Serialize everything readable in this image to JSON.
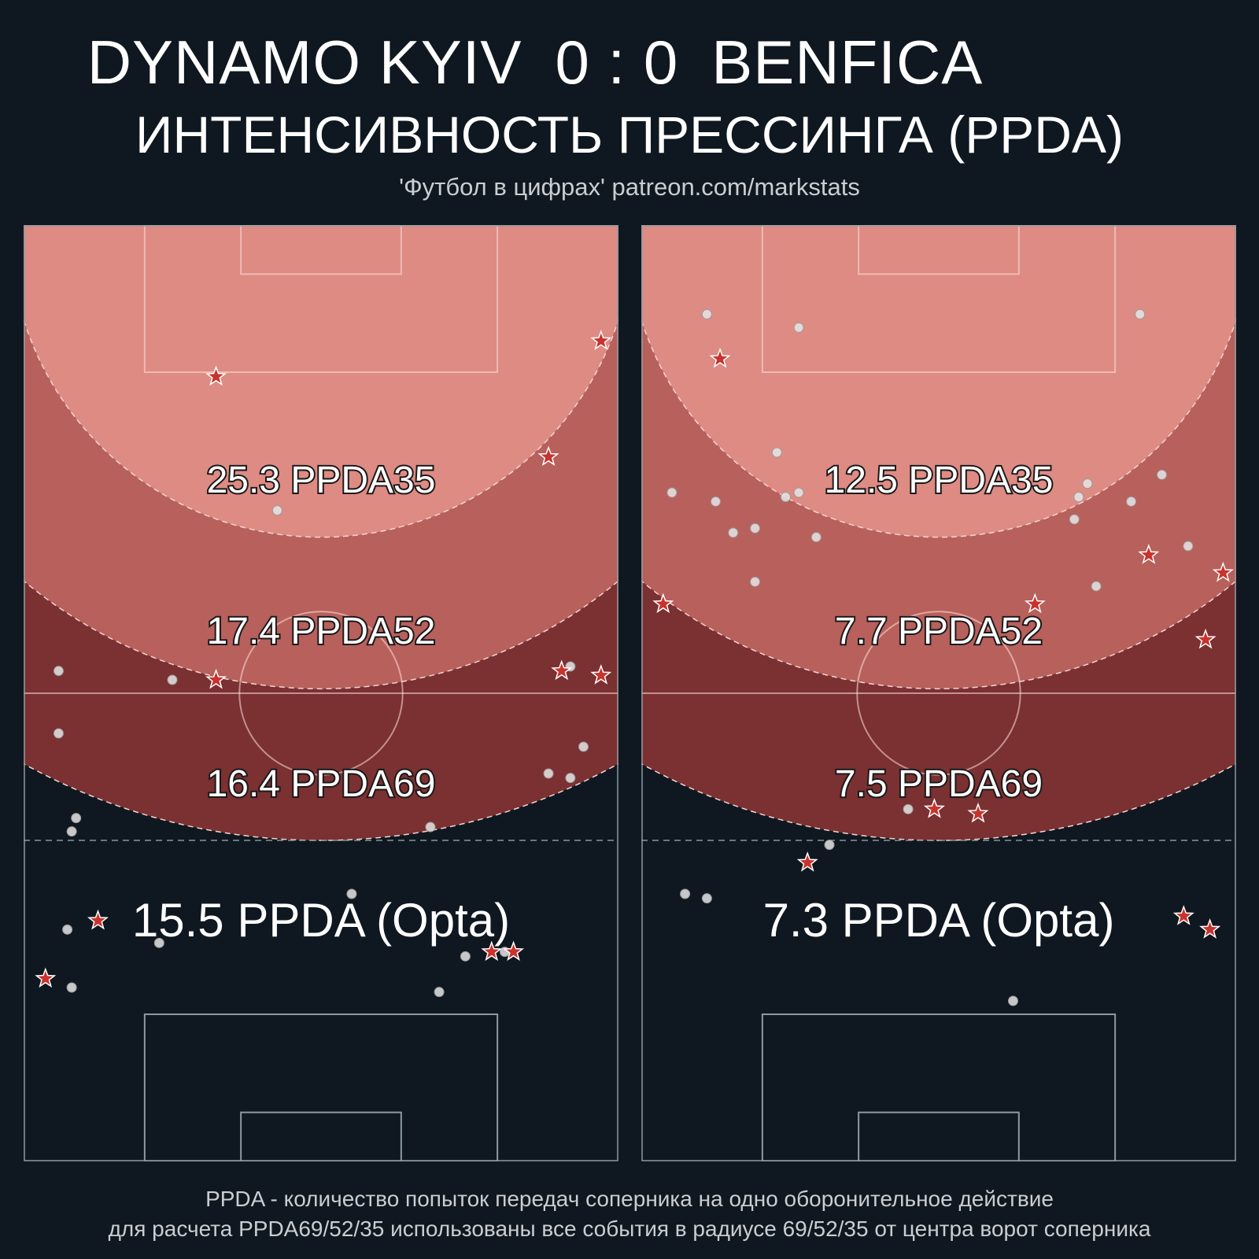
{
  "header": {
    "home_team": "DYNAMO KYIV",
    "score": "0 : 0",
    "away_team": "BENFICA",
    "subtitle": "ИНТЕНСИВНОСТЬ ПРЕССИНГА (PPDA)",
    "source": "'Футбол в цифрах' patreon.com/markstats"
  },
  "footer": {
    "line1": "PPDA - количество попыток передач соперника на одно оборонительное действие",
    "line2": "для расчета PPDA69/52/35 использованы все события в радиусе 69/52/35 от центра ворот соперника"
  },
  "colors": {
    "background": "#0f1820",
    "zone35": "#de8b84",
    "zone52": "#b8605c",
    "zone69": "#7b3032",
    "star": "#c8332d",
    "dot": "#e6e6e6"
  },
  "chart_data": [
    {
      "type": "scatter",
      "team": "DYNAMO KYIV",
      "zones": [
        {
          "radius": 35,
          "label": "25.3 PPDA35"
        },
        {
          "radius": 52,
          "label": "17.4 PPDA52"
        },
        {
          "radius": 69,
          "label": "16.4 PPDA69"
        }
      ],
      "opta_label": "15.5 PPDA (Opta)",
      "xlim": [
        0,
        68
      ],
      "ylim": [
        0,
        105
      ],
      "dots": [
        [
          29,
          73
        ],
        [
          4,
          55
        ],
        [
          17,
          54
        ],
        [
          62.5,
          55.5
        ],
        [
          4,
          48
        ],
        [
          64,
          46.5
        ],
        [
          60,
          43.5
        ],
        [
          62.5,
          43
        ],
        [
          6,
          38.5
        ],
        [
          5.5,
          37
        ],
        [
          46.5,
          37.5
        ],
        [
          37.5,
          30
        ],
        [
          5,
          26
        ],
        [
          15.5,
          24.5
        ],
        [
          50.5,
          23
        ],
        [
          55,
          23.5
        ],
        [
          5.5,
          19.5
        ],
        [
          47.5,
          19
        ]
      ],
      "stars": [
        [
          22,
          88
        ],
        [
          66,
          92
        ],
        [
          60,
          79
        ],
        [
          22,
          54
        ],
        [
          61.5,
          55
        ],
        [
          66,
          54.5
        ],
        [
          8.5,
          27
        ],
        [
          53.5,
          23.5
        ],
        [
          56,
          23.5
        ],
        [
          2.5,
          20.5
        ]
      ]
    },
    {
      "type": "scatter",
      "team": "BENFICA",
      "zones": [
        {
          "radius": 35,
          "label": "12.5 PPDA35"
        },
        {
          "radius": 52,
          "label": "7.7 PPDA52"
        },
        {
          "radius": 69,
          "label": "7.5 PPDA69"
        }
      ],
      "opta_label": "7.3 PPDA (Opta)",
      "xlim": [
        0,
        68
      ],
      "ylim": [
        0,
        105
      ],
      "dots": [
        [
          7.5,
          95
        ],
        [
          18,
          93.5
        ],
        [
          57,
          95
        ],
        [
          15.5,
          79.5
        ],
        [
          3.5,
          75
        ],
        [
          8.5,
          74
        ],
        [
          16.5,
          74.5
        ],
        [
          18,
          75
        ],
        [
          51,
          76
        ],
        [
          50,
          74.5
        ],
        [
          56,
          74
        ],
        [
          59.5,
          77
        ],
        [
          49.5,
          72
        ],
        [
          10.5,
          70.5
        ],
        [
          13,
          71
        ],
        [
          20,
          70
        ],
        [
          13,
          65
        ],
        [
          62.5,
          69
        ],
        [
          52,
          64.5
        ],
        [
          30.5,
          39.5
        ],
        [
          21.5,
          35.5
        ],
        [
          5,
          30
        ],
        [
          7.5,
          29.5
        ],
        [
          42.5,
          18
        ]
      ],
      "stars": [
        [
          9,
          90
        ],
        [
          58,
          68
        ],
        [
          66.5,
          66
        ],
        [
          2.5,
          62.5
        ],
        [
          45,
          62.5
        ],
        [
          64.5,
          58.5
        ],
        [
          33.5,
          39.5
        ],
        [
          38.5,
          39
        ],
        [
          19,
          33.5
        ],
        [
          62,
          27.5
        ],
        [
          65,
          26
        ]
      ]
    }
  ]
}
